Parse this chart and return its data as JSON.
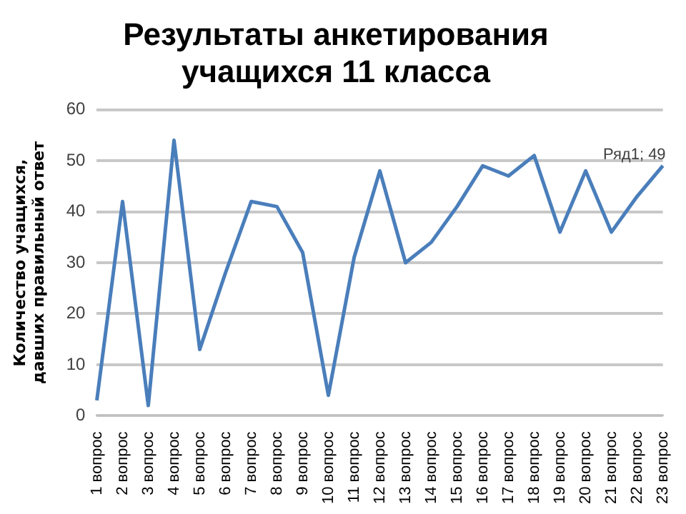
{
  "chart_data": {
    "type": "line",
    "title": "Результаты анкетирования учащихся 11 класса",
    "ylabel": "Количество учащихся, давших правильный ответ",
    "categories": [
      "1 вопрос",
      "2 вопрос",
      "3 вопрос",
      "4 вопрос",
      "5 вопрос",
      "6 вопрос",
      "7 вопрос",
      "8 вопрос",
      "9 вопрос",
      "10 вопрос",
      "11 вопрос",
      "12 вопрос",
      "13 вопрос",
      "14 вопрос",
      "15 вопрос",
      "16 вопрос",
      "17 вопрос",
      "18 вопрос",
      "19 вопрос",
      "20 вопрос",
      "21 вопрос",
      "22 вопрос",
      "23 вопрос"
    ],
    "series": [
      {
        "color": "#4a7ebb",
        "values": [
          3,
          42,
          2,
          54,
          13,
          28,
          42,
          41,
          32,
          4,
          31,
          48,
          30,
          34,
          41,
          49,
          47,
          51,
          36,
          48,
          36,
          43,
          49
        ]
      }
    ],
    "ylim": [
      0,
      60
    ],
    "yticks": [
      0,
      10,
      20,
      30,
      40,
      50,
      60
    ],
    "grid": "y",
    "legend": false,
    "marker": "none",
    "line_style": "solid",
    "annotations": [
      {
        "text": "Ряд1; 49",
        "x": "23 вопрос",
        "y": 49
      }
    ]
  }
}
